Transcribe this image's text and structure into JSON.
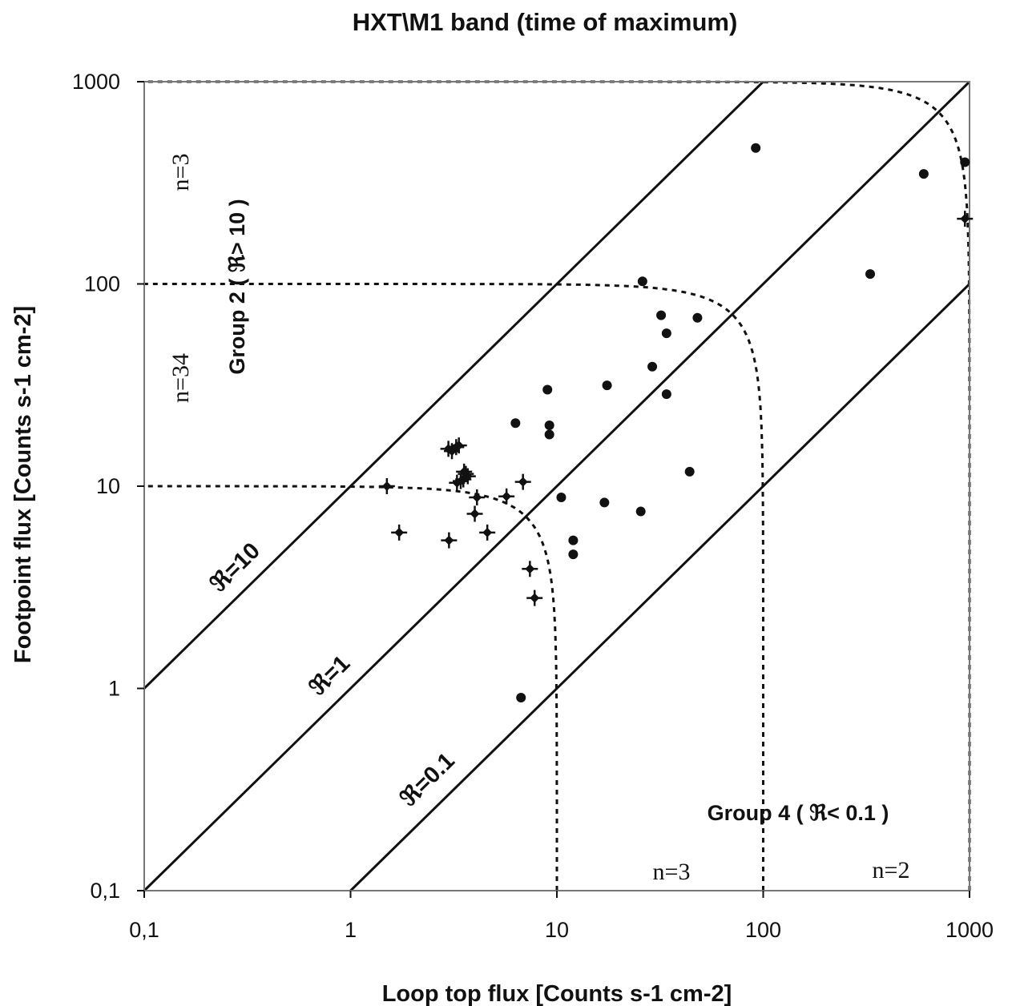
{
  "chart_data": {
    "type": "scatter",
    "title": "HXT\\M1 band (time of maximum)",
    "xlabel": "Loop top flux [Counts s-1 cm-2]",
    "ylabel": "Footpoint flux [Counts s-1 cm-2]",
    "xscale": "log",
    "yscale": "log",
    "xlim": [
      0.1,
      1000
    ],
    "ylim": [
      0.1,
      1000
    ],
    "x_ticks": [
      0.1,
      1,
      10,
      100,
      1000
    ],
    "x_tick_labels": [
      "0,1",
      "1",
      "10",
      "100",
      "1000"
    ],
    "y_ticks": [
      0.1,
      1,
      10,
      100,
      1000
    ],
    "y_tick_labels": [
      "0,1",
      "1",
      "10",
      "100",
      "1000"
    ],
    "grid": false,
    "color": "#111111",
    "ratio_lines": [
      {
        "label": "ℜ=10",
        "ratio": 10
      },
      {
        "label": "ℜ=1",
        "ratio": 1
      },
      {
        "label": "ℜ=0.1",
        "ratio": 0.1
      }
    ],
    "dashed_curves": [
      {
        "radius": 10
      },
      {
        "radius": 100
      },
      {
        "radius": 1000
      }
    ],
    "annotations": [
      {
        "text": "Group 2 ( ℜ> 10 )"
      },
      {
        "text": "Group 4 ( ℜ< 0.1 )"
      },
      {
        "text": "n=3"
      },
      {
        "text": "n=34"
      },
      {
        "text": "n=3"
      },
      {
        "text": "n=2"
      }
    ],
    "series": [
      {
        "marker": "circle",
        "x": [
          92,
          600,
          950,
          330,
          26,
          32,
          48,
          34,
          29,
          17.5,
          34,
          9,
          9.2,
          9.2,
          6.3,
          44,
          10.5,
          17,
          25.5,
          6.7,
          12,
          12
        ],
        "y": [
          470,
          350,
          400,
          112,
          103,
          70,
          68,
          57,
          39,
          31.5,
          28.5,
          30,
          20,
          18,
          20.5,
          11.8,
          8.8,
          8.3,
          7.5,
          0.9,
          5.4,
          4.6
        ]
      },
      {
        "marker": "diamond-with-error-bars",
        "x": [
          1.5,
          1.72,
          2.98,
          3.1,
          3.25,
          3.35,
          3.52,
          3.62,
          3.7,
          3.28,
          3.42,
          3.55,
          4.1,
          5.7,
          6.85,
          4.0,
          4.6,
          3.0,
          7.4,
          7.8,
          950
        ],
        "y": [
          10,
          5.9,
          15.3,
          14.9,
          15.6,
          15.9,
          10.8,
          11.5,
          11.2,
          10.4,
          10.6,
          11.8,
          8.8,
          8.9,
          10.5,
          7.3,
          5.9,
          5.4,
          3.9,
          2.8,
          210
        ]
      }
    ]
  }
}
